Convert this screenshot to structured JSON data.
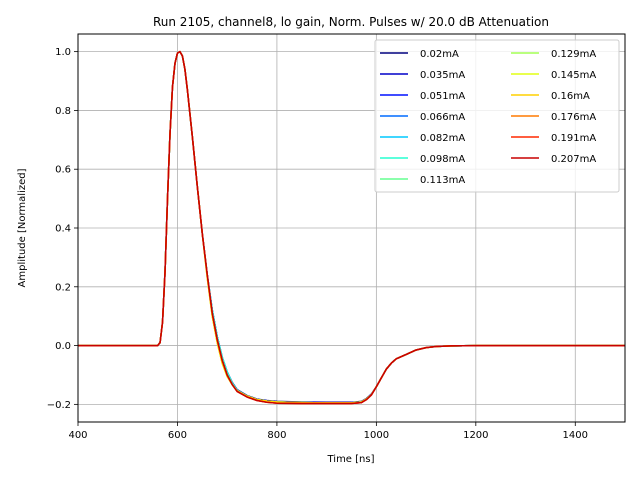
{
  "chart_data": {
    "type": "line",
    "title": "Run 2105, channel8, lo gain, Norm. Pulses w/ 20.0 dB Attenuation",
    "xlabel": "Time [ns]",
    "ylabel": "Amplitude [Normalized]",
    "xlim": [
      400,
      1500
    ],
    "ylim": [
      -0.26,
      1.06
    ],
    "xticks": [
      400,
      600,
      800,
      1000,
      1200,
      1400
    ],
    "yticks": [
      -0.2,
      0.0,
      0.2,
      0.4,
      0.6,
      0.8,
      1.0
    ],
    "ytick_labels": [
      "−0.2",
      "0.0",
      "0.2",
      "0.4",
      "0.6",
      "0.8",
      "1.0"
    ],
    "grid": true,
    "legend_position": "top-right",
    "legend_columns": 2,
    "x": [
      400,
      560,
      565,
      570,
      575,
      580,
      585,
      590,
      595,
      600,
      605,
      610,
      615,
      620,
      630,
      640,
      650,
      660,
      670,
      680,
      690,
      700,
      710,
      720,
      740,
      760,
      780,
      800,
      850,
      900,
      950,
      970,
      980,
      990,
      1000,
      1010,
      1020,
      1030,
      1040,
      1060,
      1080,
      1100,
      1120,
      1150,
      1200,
      1300,
      1500
    ],
    "series": [
      {
        "name": "0.02mA",
        "color": "#00007f",
        "y": [
          0,
          0,
          0.01,
          0.08,
          0.25,
          0.5,
          0.72,
          0.88,
          0.96,
          0.995,
          1.0,
          0.985,
          0.94,
          0.87,
          0.71,
          0.54,
          0.38,
          0.24,
          0.12,
          0.03,
          -0.04,
          -0.09,
          -0.125,
          -0.15,
          -0.17,
          -0.182,
          -0.187,
          -0.19,
          -0.192,
          -0.193,
          -0.193,
          -0.19,
          -0.18,
          -0.165,
          -0.14,
          -0.11,
          -0.08,
          -0.06,
          -0.045,
          -0.03,
          -0.015,
          -0.007,
          -0.003,
          -0.001,
          0,
          0,
          0
        ]
      },
      {
        "name": "0.035mA",
        "color": "#0000c8",
        "y": [
          0,
          0,
          0.01,
          0.08,
          0.25,
          0.5,
          0.72,
          0.88,
          0.96,
          0.995,
          1.0,
          0.985,
          0.94,
          0.87,
          0.71,
          0.54,
          0.38,
          0.24,
          0.12,
          0.03,
          -0.04,
          -0.09,
          -0.126,
          -0.151,
          -0.171,
          -0.183,
          -0.188,
          -0.191,
          -0.193,
          -0.194,
          -0.194,
          -0.191,
          -0.181,
          -0.166,
          -0.14,
          -0.11,
          -0.08,
          -0.06,
          -0.045,
          -0.03,
          -0.015,
          -0.007,
          -0.003,
          -0.001,
          0,
          0,
          0
        ]
      },
      {
        "name": "0.051mA",
        "color": "#0010ff",
        "y": [
          0,
          0,
          0.01,
          0.08,
          0.25,
          0.5,
          0.72,
          0.88,
          0.96,
          0.995,
          1.0,
          0.985,
          0.94,
          0.87,
          0.71,
          0.54,
          0.38,
          0.24,
          0.12,
          0.03,
          -0.04,
          -0.09,
          -0.126,
          -0.151,
          -0.171,
          -0.183,
          -0.188,
          -0.191,
          -0.193,
          -0.194,
          -0.194,
          -0.191,
          -0.181,
          -0.166,
          -0.14,
          -0.11,
          -0.08,
          -0.06,
          -0.045,
          -0.03,
          -0.015,
          -0.007,
          -0.003,
          -0.001,
          0,
          0,
          0
        ]
      },
      {
        "name": "0.066mA",
        "color": "#006cff",
        "y": [
          0,
          0,
          0.01,
          0.08,
          0.25,
          0.5,
          0.72,
          0.88,
          0.96,
          0.995,
          1.0,
          0.985,
          0.94,
          0.87,
          0.71,
          0.54,
          0.38,
          0.24,
          0.12,
          0.03,
          -0.04,
          -0.09,
          -0.127,
          -0.152,
          -0.172,
          -0.184,
          -0.189,
          -0.192,
          -0.194,
          -0.195,
          -0.195,
          -0.192,
          -0.182,
          -0.167,
          -0.14,
          -0.11,
          -0.08,
          -0.06,
          -0.045,
          -0.03,
          -0.015,
          -0.007,
          -0.003,
          -0.001,
          0,
          0,
          0
        ]
      },
      {
        "name": "0.082mA",
        "color": "#00c8ff",
        "y": [
          0,
          0,
          0.01,
          0.08,
          0.25,
          0.5,
          0.72,
          0.88,
          0.96,
          0.995,
          1.0,
          0.985,
          0.94,
          0.87,
          0.71,
          0.54,
          0.38,
          0.24,
          0.12,
          0.03,
          -0.04,
          -0.09,
          -0.127,
          -0.152,
          -0.172,
          -0.184,
          -0.189,
          -0.192,
          -0.194,
          -0.195,
          -0.195,
          -0.192,
          -0.182,
          -0.167,
          -0.14,
          -0.11,
          -0.08,
          -0.06,
          -0.045,
          -0.03,
          -0.015,
          -0.007,
          -0.003,
          -0.001,
          0,
          0,
          0
        ]
      },
      {
        "name": "0.098mA",
        "color": "#26ffd1",
        "y": [
          0,
          0,
          0.01,
          0.08,
          0.25,
          0.5,
          0.72,
          0.88,
          0.96,
          0.995,
          1.0,
          0.985,
          0.94,
          0.87,
          0.71,
          0.54,
          0.38,
          0.24,
          0.12,
          0.03,
          -0.04,
          -0.09,
          -0.127,
          -0.152,
          -0.172,
          -0.184,
          -0.189,
          -0.192,
          -0.194,
          -0.195,
          -0.195,
          -0.192,
          -0.182,
          -0.167,
          -0.14,
          -0.11,
          -0.08,
          -0.06,
          -0.045,
          -0.03,
          -0.015,
          -0.007,
          -0.003,
          -0.001,
          0,
          0,
          0
        ]
      },
      {
        "name": "0.113mA",
        "color": "#65ff91",
        "y": [
          0,
          0,
          0.01,
          0.08,
          0.25,
          0.5,
          0.72,
          0.88,
          0.96,
          0.995,
          1.0,
          0.985,
          0.94,
          0.87,
          0.71,
          0.54,
          0.38,
          0.24,
          0.11,
          0.02,
          -0.05,
          -0.1,
          -0.13,
          -0.153,
          -0.172,
          -0.184,
          -0.189,
          -0.192,
          -0.194,
          -0.195,
          -0.195,
          -0.192,
          -0.182,
          -0.167,
          -0.14,
          -0.11,
          -0.08,
          -0.06,
          -0.045,
          -0.03,
          -0.015,
          -0.007,
          -0.003,
          -0.001,
          0,
          0,
          0
        ]
      },
      {
        "name": "0.129mA",
        "color": "#a4ff53",
        "y": [
          0,
          0,
          0.01,
          0.08,
          0.25,
          0.5,
          0.72,
          0.88,
          0.96,
          0.995,
          1.0,
          0.985,
          0.94,
          0.87,
          0.71,
          0.54,
          0.38,
          0.23,
          0.1,
          0.01,
          -0.06,
          -0.105,
          -0.133,
          -0.154,
          -0.172,
          -0.184,
          -0.189,
          -0.192,
          -0.194,
          -0.195,
          -0.195,
          -0.192,
          -0.182,
          -0.167,
          -0.14,
          -0.11,
          -0.08,
          -0.06,
          -0.045,
          -0.03,
          -0.015,
          -0.007,
          -0.003,
          -0.001,
          0,
          0,
          0
        ]
      },
      {
        "name": "0.145mA",
        "color": "#e2ff14",
        "y": [
          0,
          0,
          0.01,
          0.08,
          0.25,
          0.5,
          0.72,
          0.88,
          0.96,
          0.995,
          1.0,
          0.985,
          0.94,
          0.87,
          0.71,
          0.54,
          0.38,
          0.23,
          0.1,
          0.01,
          -0.06,
          -0.105,
          -0.133,
          -0.154,
          -0.172,
          -0.184,
          -0.189,
          -0.192,
          -0.194,
          -0.195,
          -0.195,
          -0.192,
          -0.182,
          -0.167,
          -0.14,
          -0.11,
          -0.08,
          -0.06,
          -0.045,
          -0.03,
          -0.015,
          -0.007,
          -0.003,
          -0.001,
          0,
          0,
          0
        ]
      },
      {
        "name": "0.16mA",
        "color": "#ffd000",
        "y": [
          0,
          0,
          0.01,
          0.08,
          0.25,
          0.5,
          0.72,
          0.88,
          0.96,
          0.995,
          1.0,
          0.985,
          0.94,
          0.87,
          0.71,
          0.54,
          0.38,
          0.23,
          0.1,
          0.01,
          -0.06,
          -0.105,
          -0.133,
          -0.154,
          -0.172,
          -0.184,
          -0.189,
          -0.192,
          -0.194,
          -0.195,
          -0.195,
          -0.192,
          -0.182,
          -0.167,
          -0.14,
          -0.11,
          -0.08,
          -0.06,
          -0.045,
          -0.03,
          -0.015,
          -0.007,
          -0.003,
          -0.001,
          0,
          0,
          0
        ]
      },
      {
        "name": "0.176mA",
        "color": "#ff7a00",
        "y": [
          0,
          0,
          0.01,
          0.08,
          0.25,
          0.5,
          0.72,
          0.88,
          0.96,
          0.995,
          1.0,
          0.985,
          0.94,
          0.87,
          0.71,
          0.54,
          0.38,
          0.24,
          0.11,
          0.02,
          -0.05,
          -0.1,
          -0.132,
          -0.156,
          -0.175,
          -0.187,
          -0.193,
          -0.196,
          -0.197,
          -0.197,
          -0.197,
          -0.194,
          -0.184,
          -0.168,
          -0.14,
          -0.11,
          -0.08,
          -0.06,
          -0.045,
          -0.03,
          -0.015,
          -0.007,
          -0.003,
          -0.001,
          0,
          0,
          0
        ]
      },
      {
        "name": "0.191mA",
        "color": "#ff2900",
        "y": [
          0,
          0,
          0.01,
          0.08,
          0.25,
          0.5,
          0.72,
          0.88,
          0.96,
          0.995,
          1.0,
          0.985,
          0.94,
          0.87,
          0.71,
          0.54,
          0.38,
          0.24,
          0.11,
          0.02,
          -0.05,
          -0.1,
          -0.132,
          -0.156,
          -0.175,
          -0.187,
          -0.193,
          -0.196,
          -0.197,
          -0.197,
          -0.197,
          -0.194,
          -0.184,
          -0.168,
          -0.14,
          -0.11,
          -0.08,
          -0.06,
          -0.045,
          -0.03,
          -0.015,
          -0.007,
          -0.003,
          -0.001,
          0,
          0,
          0
        ]
      },
      {
        "name": "0.207mA",
        "color": "#c80000",
        "y": [
          0,
          0,
          0.01,
          0.08,
          0.25,
          0.5,
          0.72,
          0.88,
          0.96,
          0.995,
          1.0,
          0.985,
          0.94,
          0.87,
          0.71,
          0.54,
          0.38,
          0.24,
          0.11,
          0.02,
          -0.05,
          -0.1,
          -0.132,
          -0.156,
          -0.175,
          -0.187,
          -0.193,
          -0.196,
          -0.197,
          -0.197,
          -0.197,
          -0.194,
          -0.184,
          -0.168,
          -0.14,
          -0.11,
          -0.08,
          -0.06,
          -0.045,
          -0.03,
          -0.015,
          -0.007,
          -0.003,
          -0.001,
          0,
          0,
          0
        ]
      }
    ]
  }
}
